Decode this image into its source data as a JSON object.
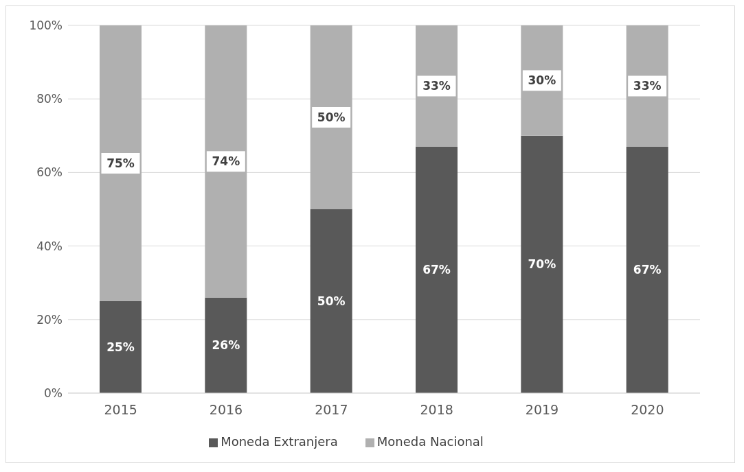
{
  "chart_data": {
    "type": "bar",
    "stacked": true,
    "categories": [
      "2015",
      "2016",
      "2017",
      "2018",
      "2019",
      "2020"
    ],
    "series": [
      {
        "name": "Moneda Extranjera",
        "color": "#595959",
        "values": [
          25,
          26,
          50,
          67,
          70,
          67
        ],
        "value_labels": [
          "25%",
          "26%",
          "50%",
          "67%",
          "70%",
          "67%"
        ]
      },
      {
        "name": "Moneda Nacional",
        "color": "#b0b0b0",
        "values": [
          75,
          74,
          50,
          33,
          30,
          33
        ],
        "value_labels": [
          "75%",
          "74%",
          "50%",
          "33%",
          "30%",
          "33%"
        ]
      }
    ],
    "ylim": [
      0,
      100
    ],
    "yticks": [
      {
        "value": 0,
        "label": "0%"
      },
      {
        "value": 20,
        "label": "20%"
      },
      {
        "value": 40,
        "label": "40%"
      },
      {
        "value": 60,
        "label": "60%"
      },
      {
        "value": 80,
        "label": "80%"
      },
      {
        "value": 100,
        "label": "100%"
      }
    ],
    "grid": "y",
    "legend": "bottom"
  }
}
